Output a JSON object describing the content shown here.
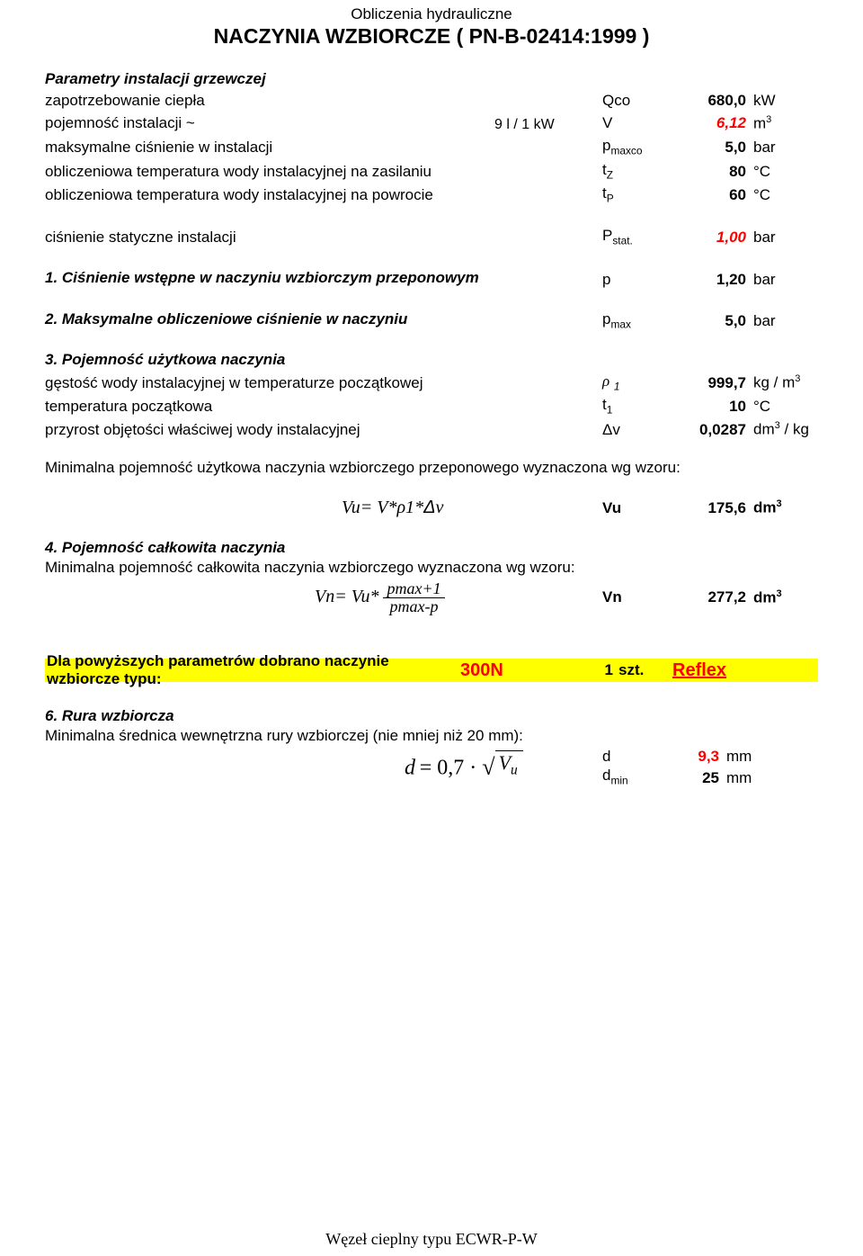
{
  "header": {
    "pretitle": "Obliczenia hydrauliczne",
    "title": "NACZYNIA WZBIORCZE ( PN-B-02414:1999 )"
  },
  "params": {
    "heading": "Parametry instalacji grzewczej",
    "rows": {
      "qco": {
        "label": "zapotrzebowanie ciepła",
        "mid": "",
        "sym": "Qco",
        "val": "680,0",
        "unit": "kW",
        "red": false
      },
      "v": {
        "label": "pojemność instalacji ~",
        "mid": "9 l / 1 kW",
        "sym": "V",
        "val": "6,12",
        "unit_html": "m<sup>3</sup>",
        "red": true,
        "italic": true
      },
      "pmax": {
        "label": "maksymalne ciśnienie w instalacji",
        "mid": "",
        "sym_html": "p<sub>maxco</sub>",
        "val": "5,0",
        "unit": "bar",
        "red": false
      },
      "tz": {
        "label": "obliczeniowa temperatura wody instalacyjnej na zasilaniu",
        "mid": "",
        "sym_html": "t<sub>Z</sub>",
        "val": "80",
        "unit": "°C",
        "red": false
      },
      "tp": {
        "label": "obliczeniowa temperatura wody instalacyjnej na powrocie",
        "mid": "",
        "sym_html": "t<sub>P</sub>",
        "val": "60",
        "unit": "°C",
        "red": false
      }
    },
    "pstat": {
      "label": "ciśnienie statyczne instalacji",
      "sym_html": "P<sub>stat.</sub>",
      "val": "1,00",
      "unit": "bar",
      "red": true,
      "italic": true
    }
  },
  "sec1": {
    "heading": "1. Ciśnienie wstępne w naczyniu wzbiorczym przeponowym",
    "sym": "p",
    "val": "1,20",
    "unit": "bar"
  },
  "sec2": {
    "heading": "2. Maksymalne obliczeniowe ciśnienie w naczyniu",
    "sym_html": "p<sub>max</sub>",
    "val": "5,0",
    "unit": "bar"
  },
  "sec3": {
    "heading": "3. Pojemność użytkowa naczynia",
    "rho": {
      "label": "gęstość wody instalacyjnej w temperaturze początkowej",
      "sym_html": "<span style='font-family:Times New Roman,serif;font-style:italic;'>ρ</span> <sub style='font-style:italic;'>1</sub>",
      "val": "999,7",
      "unit_html": "kg / m<sup>3</sup>"
    },
    "t1": {
      "label": "temperatura początkowa",
      "sym_html": "t<sub>1</sub>",
      "val": "10",
      "unit": "°C"
    },
    "dv": {
      "label": "przyrost objętości właściwej wody instalacyjnej",
      "sym_html": "Δv",
      "val": "0,0287",
      "unit_html": "dm<sup>3</sup> / kg"
    },
    "sentence": "Minimalna pojemność użytkowa naczynia wzbiorczego przeponowego wyznaczona wg wzoru:",
    "formula": "Vu= V*ρ1*Δv",
    "vu": {
      "sym": "Vu",
      "val": "175,6",
      "unit_html": "dm<sup>3</sup>"
    }
  },
  "sec4": {
    "heading": "4. Pojemność całkowita naczynia",
    "sentence": "Minimalna pojemność całkowita naczynia wzbiorczego wyznaczona wg wzoru:",
    "formula_lhs": "Vn= Vu*",
    "frac_num": "pmax+1",
    "frac_den": "pmax-p",
    "vn": {
      "sym": "Vn",
      "val": "277,2",
      "unit_html": "dm<sup>3</sup>"
    }
  },
  "highlight": {
    "label": "Dla powyższych parametrów dobrano naczynie wzbiorcze typu:",
    "type": "300N",
    "qty": "1",
    "qty_unit": "szt.",
    "brand": "Reflex"
  },
  "sec6": {
    "heading": "6. Rura wzbiorcza",
    "sentence": "Minimalna średnica wewnętrzna rury wzbiorczej (nie mniej niż 20 mm):",
    "formula_d": "d",
    "formula_eq": "= 0,7 ·",
    "formula_root": "V",
    "formula_root_sub": "u",
    "d": {
      "sym": "d",
      "val": "9,3",
      "unit": "mm",
      "red": true
    },
    "dmin": {
      "sym_html": "d<sub>min</sub>",
      "val": "25",
      "unit": "mm"
    }
  },
  "footer": "Węzeł cieplny typu ECWR-P-W"
}
